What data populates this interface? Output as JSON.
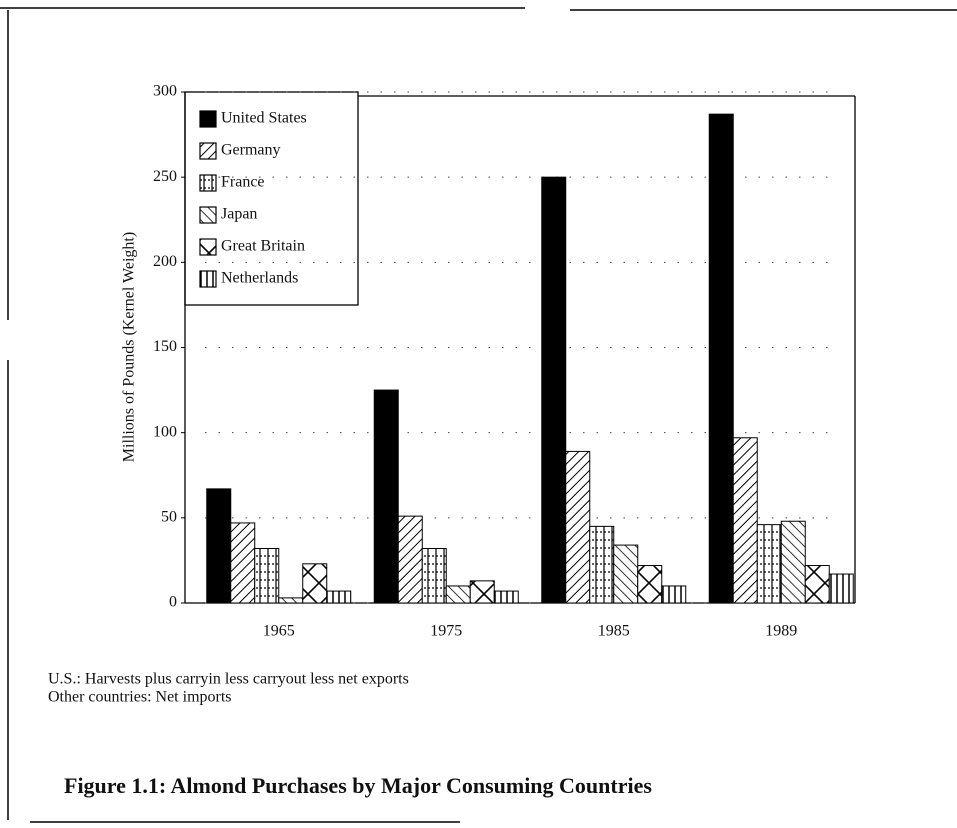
{
  "chart_data": {
    "type": "bar",
    "title": "Figure 1.1: Almond Purchases by Major Consuming Countries",
    "y_label": "Millions of Pounds (Kernel Weight)",
    "notes": [
      "U.S.: Harvests plus carryin less carryout less net exports",
      "Other countries: Net imports"
    ],
    "categories": [
      "1965",
      "1975",
      "1985",
      "1989"
    ],
    "series": [
      {
        "name": "United States",
        "color": "#000000",
        "values": [
          67,
          125,
          250,
          287
        ]
      },
      {
        "name": "Germany",
        "color": "#000000",
        "values": [
          47,
          51,
          89,
          97
        ]
      },
      {
        "name": "France",
        "color": "#000000",
        "values": [
          32,
          32,
          45,
          46
        ]
      },
      {
        "name": "Japan",
        "color": "#000000",
        "values": [
          3,
          10,
          34,
          48
        ]
      },
      {
        "name": "Great Britain",
        "color": "#000000",
        "values": [
          23,
          13,
          22,
          22
        ]
      },
      {
        "name": "Netherlands",
        "color": "#000000",
        "values": [
          7,
          7,
          10,
          17
        ]
      }
    ],
    "ylim": [
      0,
      300
    ],
    "yticks": [
      0,
      50,
      100,
      150,
      200,
      250,
      300
    ],
    "grid": true,
    "legend": "upper left"
  }
}
